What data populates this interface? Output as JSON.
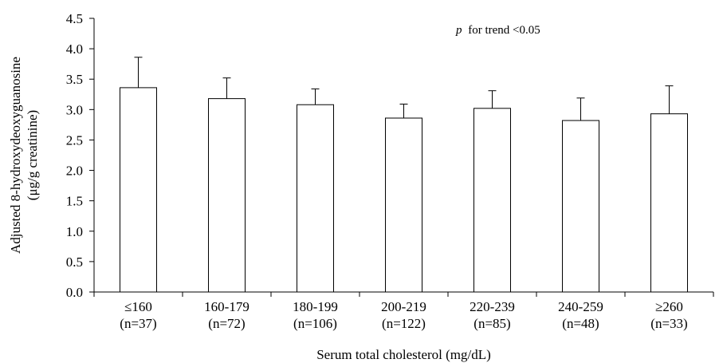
{
  "chart_data": {
    "type": "bar",
    "title": "",
    "xlabel": "Serum total cholesterol (mg/dL)",
    "ylabel_line1": "Adjusted 8-hydroxydeoxyguanosine",
    "ylabel_line2": "(μg/g creatinine)",
    "annotation_p": "p",
    "annotation_rest": "for trend <0.05",
    "ylim": [
      0,
      4.5
    ],
    "yticks": [
      "0.0",
      "0.5",
      "1.0",
      "1.5",
      "2.0",
      "2.5",
      "3.0",
      "3.5",
      "4.0",
      "4.5"
    ],
    "categories": [
      "≤160",
      "160-179",
      "180-199",
      "200-219",
      "220-239",
      "240-259",
      "≥260"
    ],
    "sample_sizes": [
      "(n=37)",
      "(n=72)",
      "(n=106)",
      "(n=122)",
      "(n=85)",
      "(n=48)",
      "(n=33)"
    ],
    "values": [
      3.36,
      3.18,
      3.08,
      2.86,
      3.02,
      2.82,
      2.93
    ],
    "error_upper": [
      3.86,
      3.52,
      3.34,
      3.09,
      3.31,
      3.19,
      3.39
    ],
    "grid": false,
    "colors": {
      "bar_fill": "#ffffff",
      "stroke": "#000000"
    }
  }
}
